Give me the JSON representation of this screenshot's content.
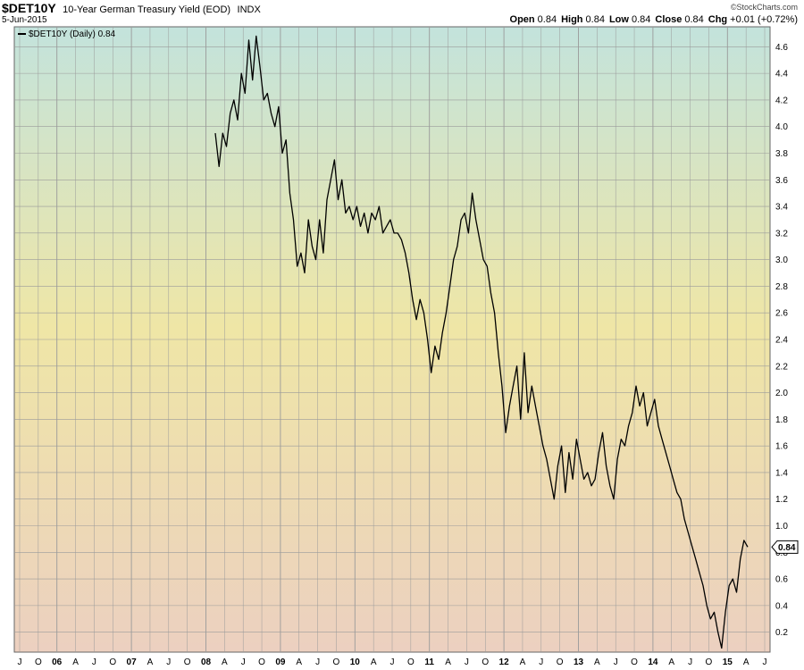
{
  "header": {
    "symbol": "$DET10Y",
    "title": "10-Year German Treasury Yield (EOD)",
    "exchange": "INDX",
    "date": "5-Jun-2015",
    "watermark": "©StockCharts.com",
    "ohlc": [
      {
        "label": "Open",
        "value": "0.84"
      },
      {
        "label": "High",
        "value": "0.84"
      },
      {
        "label": "Low",
        "value": "0.84"
      },
      {
        "label": "Close",
        "value": "0.84"
      },
      {
        "label": "Chg",
        "value": "+0.01 (+0.72%)"
      }
    ]
  },
  "legend": {
    "text": "$DET10Y (Daily) 0.84"
  },
  "last_value_label": "0.84",
  "colors": {
    "bg_top": "#c3e3dc",
    "bg_mid": "#efe6a6",
    "bg_bottom": "#ecd0c0",
    "line": "#000000",
    "grid": "#9a9a9a"
  },
  "chart_data": {
    "type": "line",
    "title": "10-Year German Treasury Yield (EOD)",
    "xlabel": "",
    "ylabel": "",
    "ylim": [
      0.05,
      4.75
    ],
    "y_ticks": [
      "0.2",
      "0.4",
      "0.6",
      "0.8",
      "1.0",
      "1.2",
      "1.4",
      "1.6",
      "1.8",
      "2.0",
      "2.2",
      "2.4",
      "2.6",
      "2.8",
      "3.0",
      "3.2",
      "3.4",
      "3.6",
      "3.8",
      "4.0",
      "4.2",
      "4.4",
      "4.6"
    ],
    "x_ticks": [
      "J",
      "O",
      "06",
      "A",
      "J",
      "O",
      "07",
      "A",
      "J",
      "O",
      "08",
      "A",
      "J",
      "O",
      "09",
      "A",
      "J",
      "O",
      "10",
      "A",
      "J",
      "O",
      "11",
      "A",
      "J",
      "O",
      "12",
      "A",
      "J",
      "O",
      "13",
      "A",
      "J",
      "O",
      "14",
      "A",
      "J",
      "O",
      "15",
      "A",
      "J"
    ],
    "series": [
      {
        "name": "$DET10Y",
        "values": [
          3.95,
          3.7,
          3.95,
          3.85,
          4.1,
          4.2,
          4.05,
          4.4,
          4.25,
          4.65,
          4.35,
          4.68,
          4.45,
          4.2,
          4.25,
          4.1,
          4.0,
          4.15,
          3.8,
          3.9,
          3.5,
          3.3,
          2.95,
          3.05,
          2.9,
          3.3,
          3.1,
          3.0,
          3.3,
          3.05,
          3.45,
          3.6,
          3.75,
          3.45,
          3.6,
          3.35,
          3.4,
          3.3,
          3.4,
          3.25,
          3.35,
          3.2,
          3.35,
          3.3,
          3.4,
          3.2,
          3.25,
          3.3,
          3.2,
          3.2,
          3.15,
          3.05,
          2.9,
          2.7,
          2.55,
          2.7,
          2.6,
          2.4,
          2.15,
          2.35,
          2.25,
          2.45,
          2.6,
          2.8,
          3.0,
          3.1,
          3.3,
          3.35,
          3.2,
          3.5,
          3.3,
          3.15,
          3.0,
          2.95,
          2.75,
          2.6,
          2.3,
          2.05,
          1.7,
          1.9,
          2.05,
          2.2,
          1.8,
          2.3,
          1.85,
          2.05,
          1.9,
          1.75,
          1.6,
          1.5,
          1.35,
          1.2,
          1.45,
          1.6,
          1.25,
          1.55,
          1.35,
          1.65,
          1.5,
          1.35,
          1.4,
          1.3,
          1.35,
          1.55,
          1.7,
          1.45,
          1.3,
          1.2,
          1.5,
          1.65,
          1.6,
          1.75,
          1.85,
          2.05,
          1.9,
          2.0,
          1.75,
          1.85,
          1.95,
          1.75,
          1.65,
          1.55,
          1.45,
          1.35,
          1.25,
          1.2,
          1.05,
          0.95,
          0.85,
          0.75,
          0.65,
          0.55,
          0.4,
          0.3,
          0.35,
          0.2,
          0.08,
          0.35,
          0.55,
          0.6,
          0.5,
          0.75,
          0.89,
          0.84
        ]
      }
    ]
  }
}
